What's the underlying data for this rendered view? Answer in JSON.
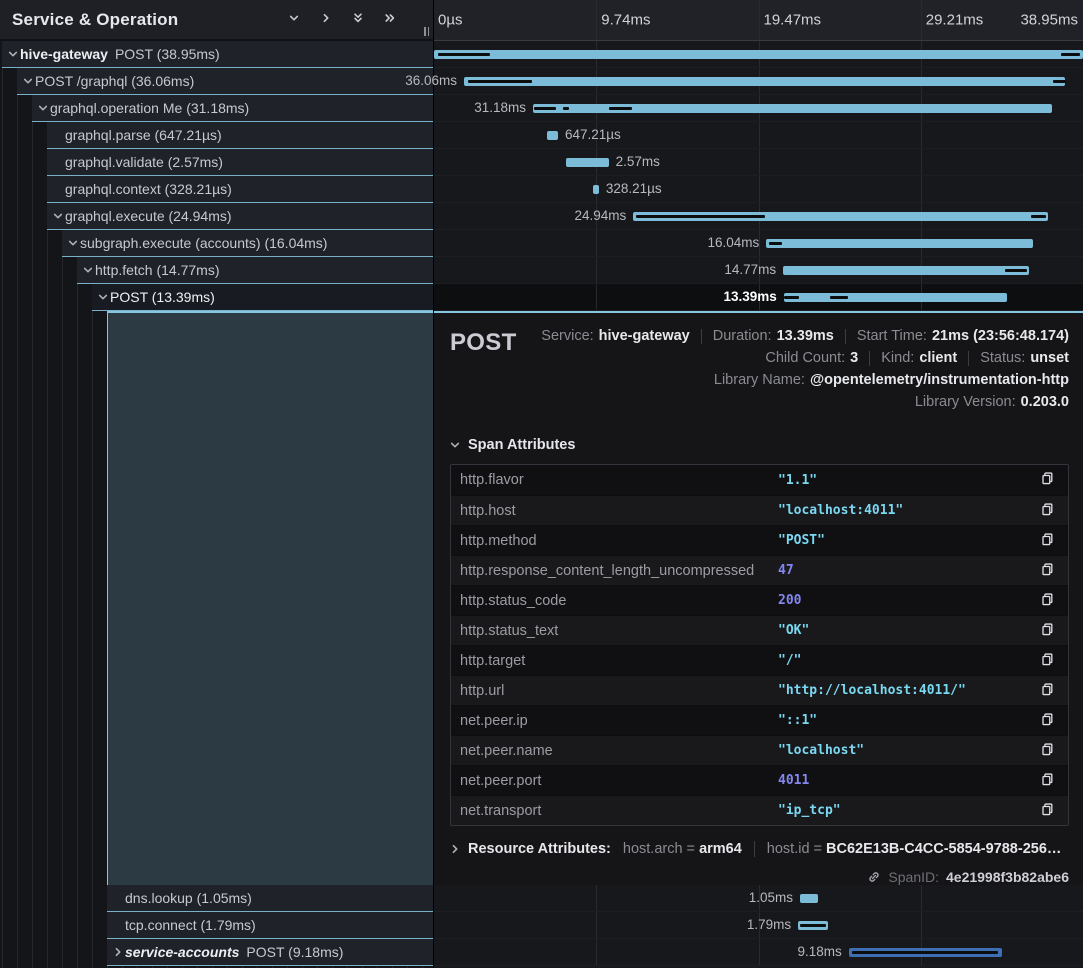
{
  "header": {
    "title": "Service & Operation",
    "icons": [
      {
        "name": "expand-one",
        "glyph": "chevron-down"
      },
      {
        "name": "collapse-one",
        "glyph": "chevron-right"
      },
      {
        "name": "expand-all",
        "glyph": "double-chevron-down"
      },
      {
        "name": "collapse-all",
        "glyph": "double-chevron-right"
      }
    ]
  },
  "ruler": {
    "ticks": [
      "0µs",
      "9.74ms",
      "19.47ms",
      "29.21ms",
      "38.95ms"
    ]
  },
  "colors": {
    "span_bar": "#7cbcd9",
    "span_bar_alt": "#3f6fb3",
    "row_underline": "#79b1cc",
    "accent_border": "#85c6e0",
    "string_value": "#79d9f2",
    "number_value": "#8487f0"
  },
  "tree": {
    "rows": [
      {
        "service": "hive-gateway",
        "label": "POST (38.95ms)",
        "depth": 0,
        "chevron": "down"
      },
      {
        "label": "POST /graphql (36.06ms)",
        "depth": 1,
        "chevron": "down"
      },
      {
        "label": "graphql.operation Me (31.18ms)",
        "depth": 2,
        "chevron": "down"
      },
      {
        "label": "graphql.parse (647.21µs)",
        "depth": 3
      },
      {
        "label": "graphql.validate (2.57ms)",
        "depth": 3
      },
      {
        "label": "graphql.context (328.21µs)",
        "depth": 3
      },
      {
        "label": "graphql.execute (24.94ms)",
        "depth": 3,
        "chevron": "down"
      },
      {
        "label": "subgraph.execute (accounts) (16.04ms)",
        "depth": 4,
        "chevron": "down"
      },
      {
        "label": "http.fetch (14.77ms)",
        "depth": 5,
        "chevron": "down"
      },
      {
        "label": "POST (13.39ms)",
        "depth": 6,
        "chevron": "down",
        "selected": true
      },
      {
        "label": "dns.lookup (1.05ms)",
        "depth": 7,
        "below_detail": true
      },
      {
        "label": "tcp.connect (1.79ms)",
        "depth": 7,
        "below_detail": true
      },
      {
        "service": "service-accounts",
        "service_italic": true,
        "label": "POST (9.18ms)",
        "depth": 7,
        "chevron": "right",
        "below_detail": true
      }
    ]
  },
  "timeline": {
    "rows": [
      {
        "start": 0,
        "width": 100,
        "markers": [
          [
            0.6,
            8.0
          ],
          [
            96.6,
            2.9
          ]
        ]
      },
      {
        "label": "36.06ms",
        "side": "left",
        "start": 4.62,
        "width": 92.6,
        "markers": [
          [
            5.2,
            9.9
          ],
          [
            95.4,
            2.0
          ]
        ]
      },
      {
        "label": "31.18ms",
        "side": "left",
        "start": 15.25,
        "width": 80.0,
        "markers": [
          [
            15.4,
            3.4
          ],
          [
            19.9,
            0.9
          ],
          [
            27.0,
            3.5
          ]
        ]
      },
      {
        "label": "647.21µs",
        "side": "right",
        "start": 17.4,
        "width": 1.7
      },
      {
        "label": "2.57ms",
        "side": "right",
        "start": 20.3,
        "width": 6.6
      },
      {
        "label": "328.21µs",
        "side": "right",
        "start": 24.5,
        "width": 0.9
      },
      {
        "label": "24.94ms",
        "side": "left",
        "start": 30.7,
        "width": 63.9,
        "markers": [
          [
            31.1,
            19.9
          ],
          [
            92.0,
            2.3
          ]
        ]
      },
      {
        "label": "16.04ms",
        "side": "left",
        "start": 51.2,
        "width": 41.1,
        "markers": [
          [
            51.6,
            2.0
          ]
        ]
      },
      {
        "label": "14.77ms",
        "side": "left",
        "start": 53.8,
        "width": 37.9,
        "markers": [
          [
            88.0,
            3.4
          ]
        ]
      },
      {
        "label": "13.39ms",
        "side": "left",
        "start": 53.9,
        "width": 34.4,
        "selected": true,
        "markers": [
          [
            54.0,
            2.2
          ],
          [
            61.0,
            2.8
          ]
        ]
      },
      {
        "label": "1.05ms",
        "side": "left",
        "start": 56.4,
        "width": 2.7,
        "below_detail": true
      },
      {
        "label": "1.79ms",
        "side": "left",
        "start": 56.1,
        "width": 4.6,
        "below_detail": true,
        "markers": [
          [
            56.4,
            4.0
          ]
        ]
      },
      {
        "label": "9.18ms",
        "side": "left",
        "start": 63.9,
        "width": 23.6,
        "color": "alt",
        "below_detail": true,
        "markers": [
          [
            64.4,
            22.5
          ]
        ]
      }
    ]
  },
  "detail": {
    "title": "POST",
    "overview": [
      [
        {
          "label": "Service:",
          "value": "hive-gateway"
        },
        {
          "label": "Duration:",
          "value": "13.39ms"
        },
        {
          "label": "Start Time:",
          "value": "21ms (23:56:48.174)"
        }
      ],
      [
        {
          "label": "Child Count:",
          "value": "3"
        },
        {
          "label": "Kind:",
          "value": "client"
        },
        {
          "label": "Status:",
          "value": "unset"
        }
      ],
      [
        {
          "label": "Library Name:",
          "value": "@opentelemetry/instrumentation-http"
        }
      ],
      [
        {
          "label": "Library Version:",
          "value": "0.203.0"
        }
      ]
    ],
    "span_attributes": {
      "heading": "Span Attributes",
      "rows": [
        {
          "key": "http.flavor",
          "value": "\"1.1\"",
          "type": "string"
        },
        {
          "key": "http.host",
          "value": "\"localhost:4011\"",
          "type": "string"
        },
        {
          "key": "http.method",
          "value": "\"POST\"",
          "type": "string"
        },
        {
          "key": "http.response_content_length_uncompressed",
          "value": "47",
          "type": "number"
        },
        {
          "key": "http.status_code",
          "value": "200",
          "type": "number"
        },
        {
          "key": "http.status_text",
          "value": "\"OK\"",
          "type": "string"
        },
        {
          "key": "http.target",
          "value": "\"/\"",
          "type": "string"
        },
        {
          "key": "http.url",
          "value": "\"http://localhost:4011/\"",
          "type": "string"
        },
        {
          "key": "net.peer.ip",
          "value": "\"::1\"",
          "type": "string"
        },
        {
          "key": "net.peer.name",
          "value": "\"localhost\"",
          "type": "string"
        },
        {
          "key": "net.peer.port",
          "value": "4011",
          "type": "number"
        },
        {
          "key": "net.transport",
          "value": "\"ip_tcp\"",
          "type": "string"
        }
      ]
    },
    "resource_attributes": {
      "heading": "Resource Attributes:",
      "pairs": [
        {
          "key": "host.arch",
          "value": "arm64"
        },
        {
          "key": "host.id",
          "value": "BC62E13B-C4CC-5854-9788-256…"
        }
      ]
    },
    "span_id": {
      "label": "SpanID:",
      "value": "4e21998f3b82abe6"
    }
  }
}
